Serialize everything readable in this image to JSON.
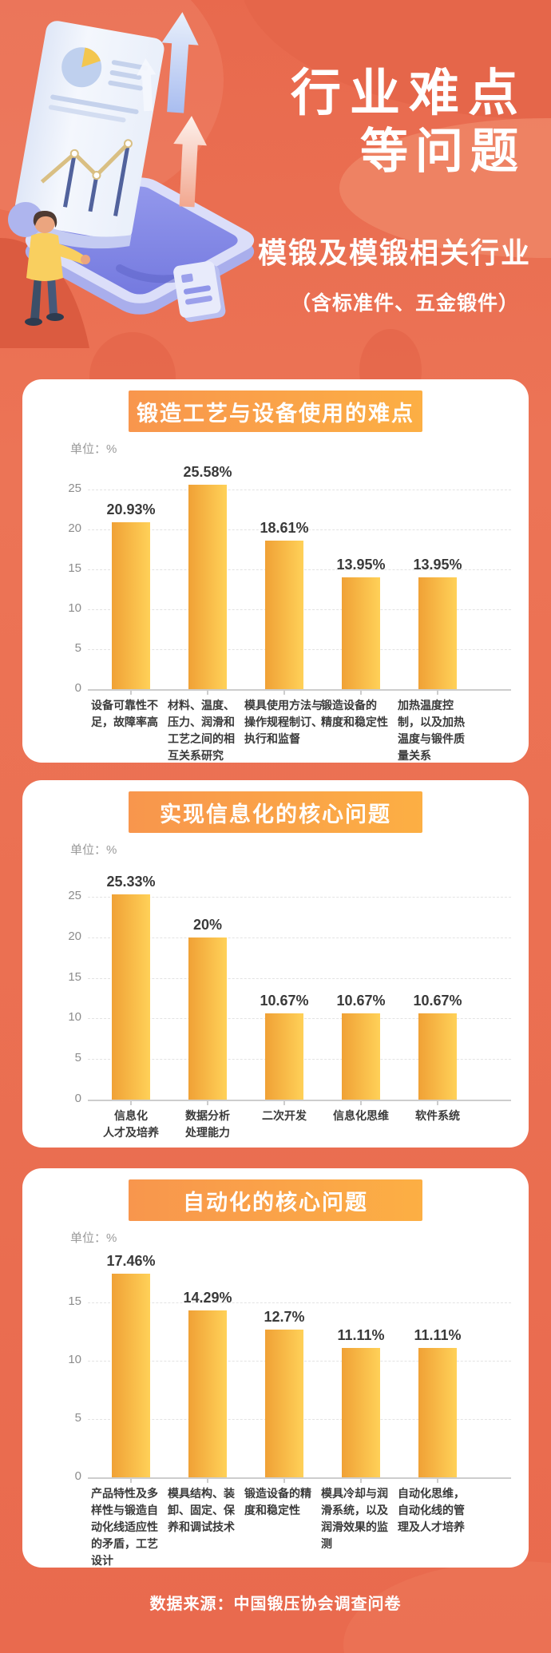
{
  "header": {
    "title_line1": "行业难点",
    "title_line2": "等问题",
    "subtitle": "模锻及模锻相关行业",
    "subtitle_note": "（含标准件、五金锻件）"
  },
  "footer": {
    "source": "数据来源：中国锻压协会调查问卷"
  },
  "colors": {
    "background": "#EB7052",
    "background_dark_wave": "#E5664A",
    "background_light_wave": "#EF8768",
    "card": "#FFFFFF",
    "title_bar_gradient": [
      "#F8964D",
      "#FCAF44"
    ],
    "bar_gradient": [
      "#F0A136",
      "#FFD158"
    ],
    "value_text": "#3A3A3A",
    "tick_text": "#8C8C8C",
    "unit_text": "#9A9A9A",
    "white_text": "#FFFFFF"
  },
  "chart_data": [
    {
      "type": "bar",
      "title": "锻造工艺与设备使用的难点",
      "unit": "单位：%",
      "categories": [
        "设备可靠性不足，故障率高",
        "材料、温度、压力、润滑和工艺之间的相互关系研究",
        "模具使用方法与操作规程制订、执行和监督",
        "锻造设备的精度和稳定性",
        "加热温度控制，以及加热温度与锻件质量关系"
      ],
      "category_lines": [
        [
          "设备可靠性不",
          "足，故障率高"
        ],
        [
          "材料、温度、",
          "压力、润滑和",
          "工艺之间的相",
          "互关系研究"
        ],
        [
          "模具使用方法与",
          "操作规程制订、",
          "执行和监督"
        ],
        [
          "锻造设备的",
          "精度和稳定性"
        ],
        [
          "加热温度控",
          "制，以及加热",
          "温度与锻件质",
          "量关系"
        ]
      ],
      "values": [
        20.93,
        25.58,
        18.61,
        13.95,
        13.95
      ],
      "value_labels": [
        "20.93%",
        "25.58%",
        "18.61%",
        "13.95%",
        "13.95%"
      ],
      "xlabel": "",
      "ylabel": "%",
      "ylim": [
        0,
        25
      ],
      "yticks": [
        0,
        5,
        10,
        15,
        20,
        25
      ],
      "grid": "horizontal-dashed",
      "legend": "none",
      "label_align": "left"
    },
    {
      "type": "bar",
      "title": "实现信息化的核心问题",
      "unit": "单位：%",
      "categories": [
        "信息化人才及培养",
        "数据分析处理能力",
        "二次开发",
        "信息化思维",
        "软件系统"
      ],
      "category_lines": [
        [
          "信息化",
          "人才及培养"
        ],
        [
          "数据分析",
          "处理能力"
        ],
        [
          "二次开发"
        ],
        [
          "信息化思维"
        ],
        [
          "软件系统"
        ]
      ],
      "values": [
        25.33,
        20,
        10.67,
        10.67,
        10.67
      ],
      "value_labels": [
        "25.33%",
        "20%",
        "10.67%",
        "10.67%",
        "10.67%"
      ],
      "xlabel": "",
      "ylabel": "%",
      "ylim": [
        0,
        25
      ],
      "yticks": [
        0,
        5,
        10,
        15,
        20,
        25
      ],
      "grid": "horizontal-dashed",
      "legend": "none",
      "label_align": "center"
    },
    {
      "type": "bar",
      "title": "自动化的核心问题",
      "unit": "单位：%",
      "categories": [
        "产品特性及多样性与锻造自动化线适应性的矛盾，工艺设计",
        "模具结构、装卸、固定、保养和调试技术",
        "锻造设备的精度和稳定性",
        "模具冷却与润滑系统，以及润滑效果的监测",
        "自动化思维，自动化线的管理及人才培养"
      ],
      "category_lines": [
        [
          "产品特性及多",
          "样性与锻造自",
          "动化线适应性",
          "的矛盾，工艺",
          "设计"
        ],
        [
          "模具结构、装",
          "卸、固定、保",
          "养和调试技术"
        ],
        [
          "锻造设备的精",
          "度和稳定性"
        ],
        [
          "模具冷却与润",
          "滑系统，以及",
          "润滑效果的监",
          "测"
        ],
        [
          "自动化思维，",
          "自动化线的管",
          "理及人才培养"
        ]
      ],
      "values": [
        17.46,
        14.29,
        12.7,
        11.11,
        11.11
      ],
      "value_labels": [
        "17.46%",
        "14.29%",
        "12.7%",
        "11.11%",
        "11.11%"
      ],
      "xlabel": "",
      "ylabel": "%",
      "ylim": [
        0,
        17.5
      ],
      "yticks": [
        0,
        5,
        10,
        15
      ],
      "grid": "horizontal-dashed",
      "legend": "none",
      "label_align": "left"
    }
  ]
}
